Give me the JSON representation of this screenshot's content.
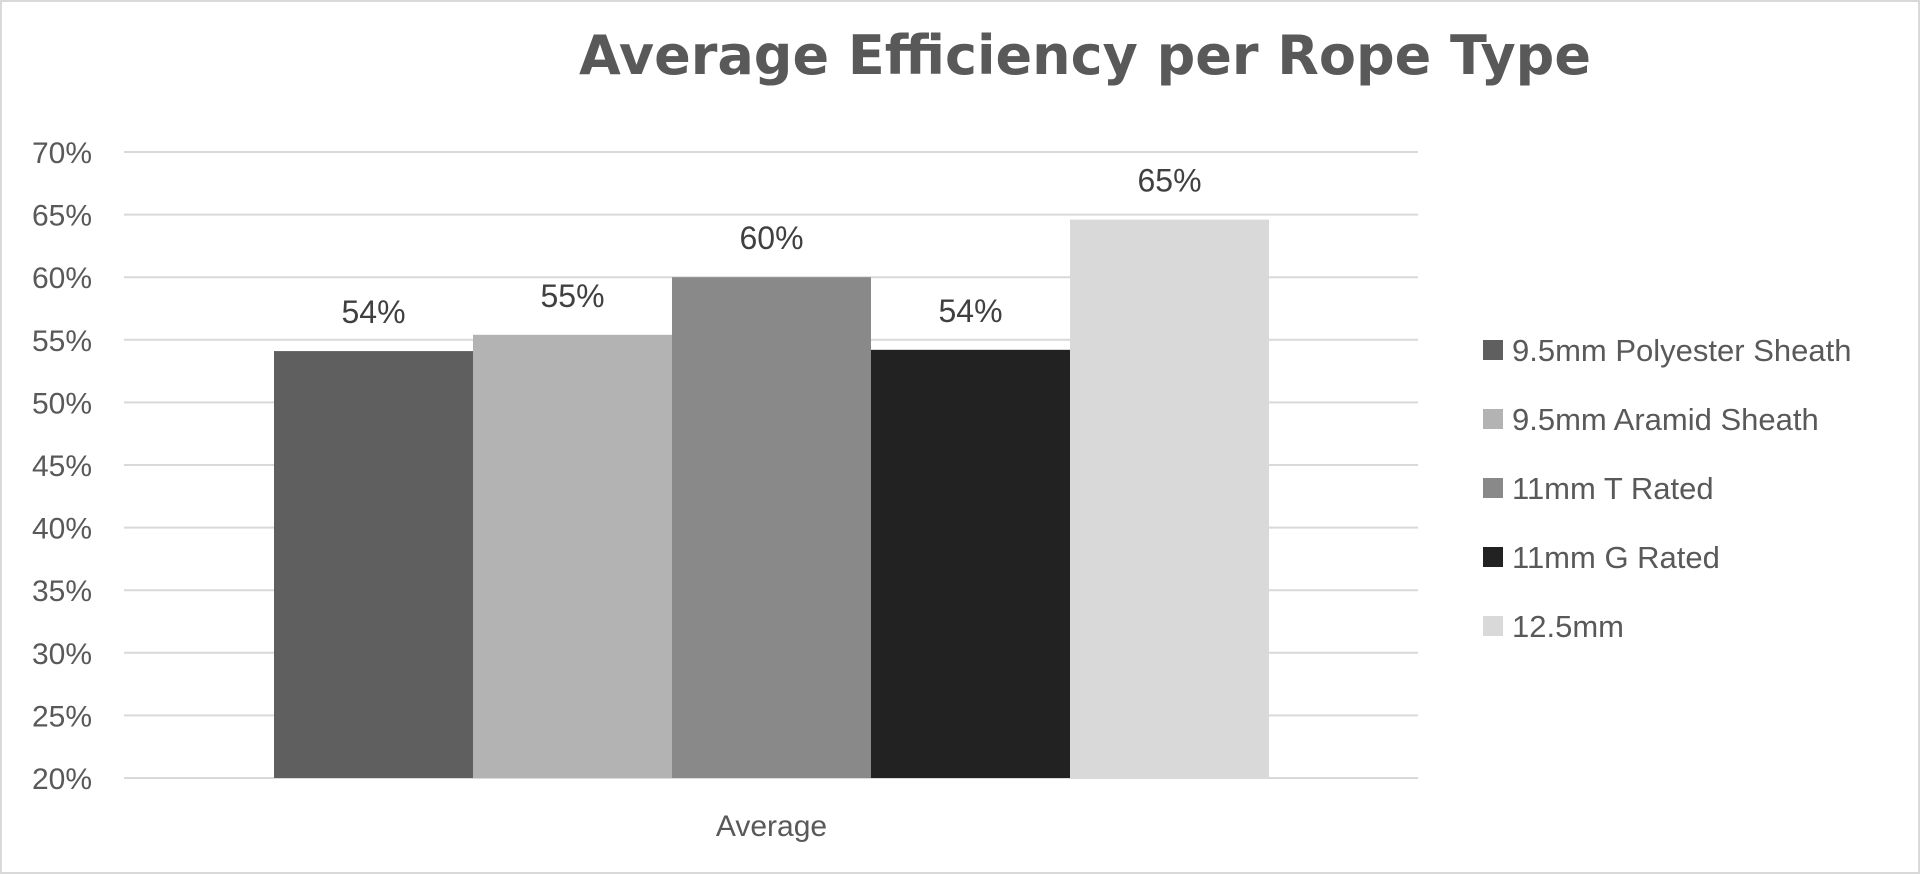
{
  "chart_data": {
    "type": "bar",
    "title": "Average Efficiency per Rope Type",
    "xlabel": "",
    "ylabel": "",
    "categories": [
      "Average"
    ],
    "ylim": [
      0.2,
      0.7
    ],
    "y_ticks": [
      "20%",
      "25%",
      "30%",
      "35%",
      "40%",
      "45%",
      "50%",
      "55%",
      "60%",
      "65%",
      "70%"
    ],
    "grid": true,
    "legend": "right",
    "series": [
      {
        "name": "9.5mm Polyester Sheath",
        "values": [
          0.541
        ],
        "label": "54%",
        "color": "#5f5f5f"
      },
      {
        "name": "9.5mm Aramid Sheath",
        "values": [
          0.554
        ],
        "label": "55%",
        "color": "#b3b3b3"
      },
      {
        "name": "11mm T Rated",
        "values": [
          0.6
        ],
        "label": "60%",
        "color": "#898989"
      },
      {
        "name": "11mm G Rated",
        "values": [
          0.542
        ],
        "label": "54%",
        "color": "#222222"
      },
      {
        "name": "12.5mm",
        "values": [
          0.646
        ],
        "label": "65%",
        "color": "#d9d9d9"
      }
    ]
  }
}
